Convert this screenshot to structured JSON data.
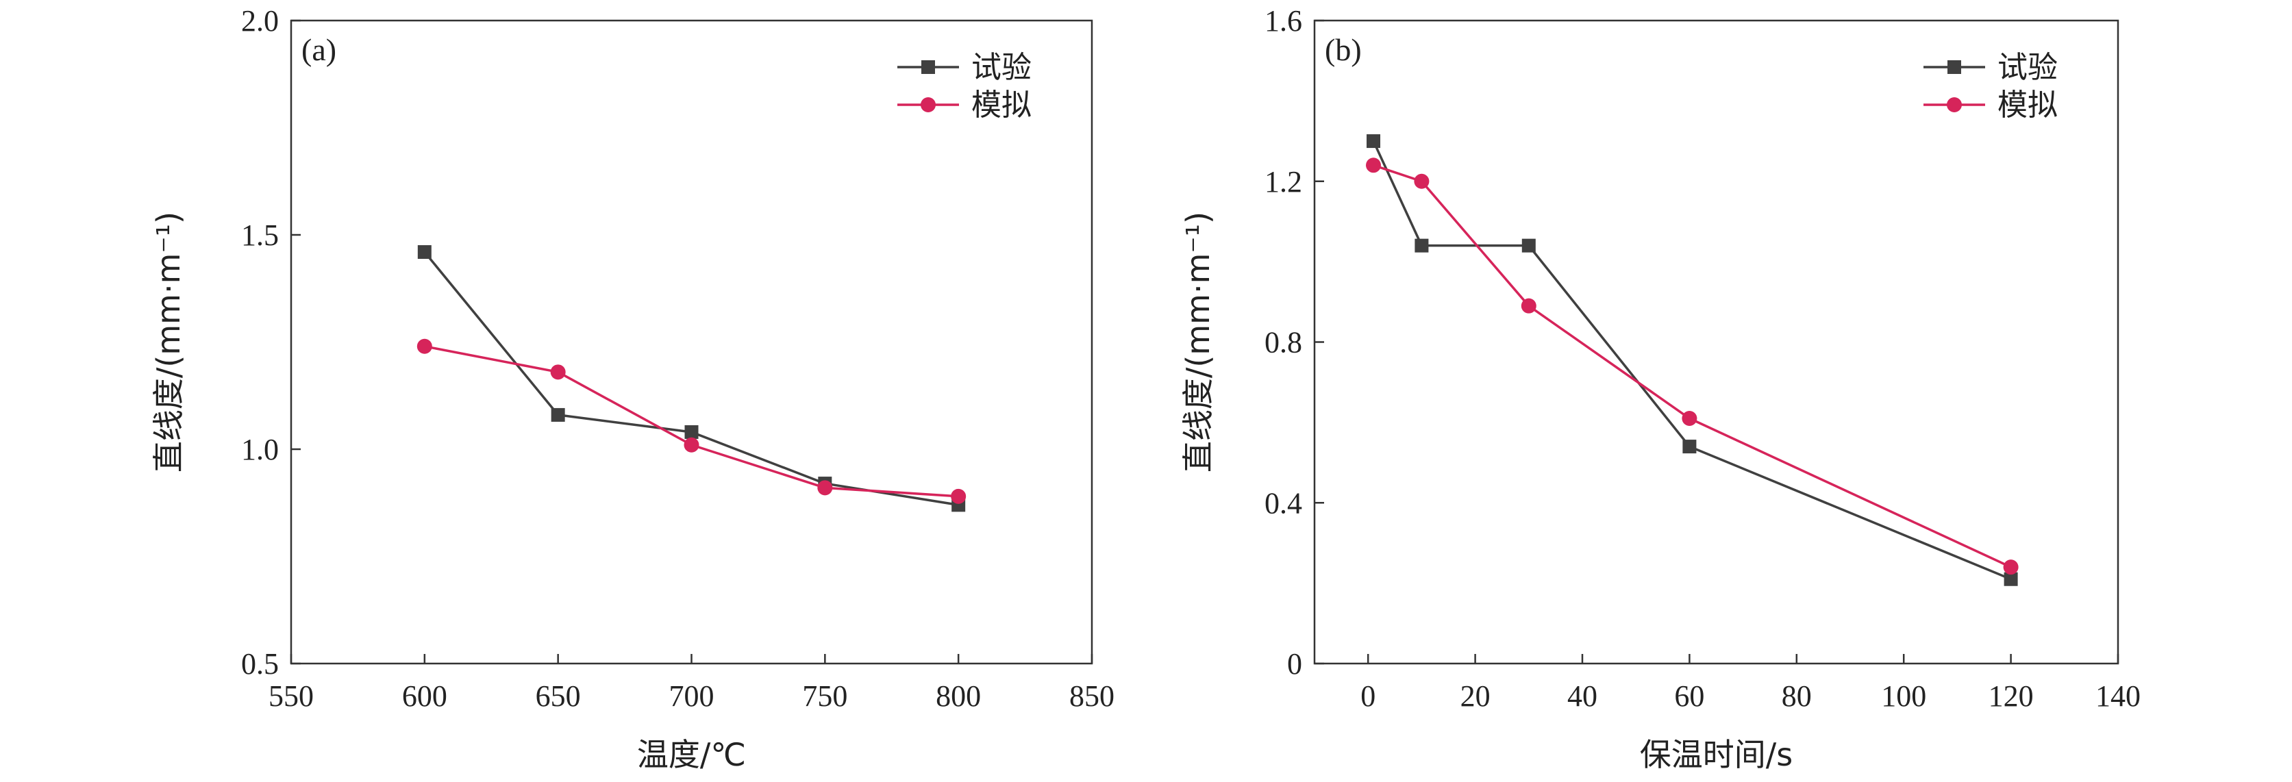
{
  "chart_data": [
    {
      "type": "line",
      "panel_tag": "(a)",
      "xlabel": "温度/℃",
      "ylabel": "直线度/(mm·m⁻¹)",
      "xlim": [
        550,
        850
      ],
      "ylim": [
        0.5,
        2.0
      ],
      "xticks": [
        550,
        600,
        650,
        700,
        750,
        800,
        850
      ],
      "yticks": [
        0.5,
        1.0,
        1.5,
        2.0
      ],
      "xtick_labels": [
        "550",
        "600",
        "650",
        "700",
        "750",
        "800",
        "850"
      ],
      "ytick_labels": [
        "0.5",
        "1.0",
        "1.5",
        "2.0"
      ],
      "legend_position": "top-right",
      "grid": false,
      "series": [
        {
          "name": "试验",
          "marker": "square",
          "color": "#404040",
          "x": [
            600,
            650,
            700,
            750,
            800
          ],
          "y": [
            1.46,
            1.08,
            1.04,
            0.92,
            0.87
          ]
        },
        {
          "name": "模拟",
          "marker": "circle",
          "color": "#d6245a",
          "x": [
            600,
            650,
            700,
            750,
            800
          ],
          "y": [
            1.24,
            1.18,
            1.01,
            0.91,
            0.89
          ]
        }
      ]
    },
    {
      "type": "line",
      "panel_tag": "(b)",
      "xlabel": "保温时间/s",
      "ylabel": "直线度/(mm·m⁻¹)",
      "xlim": [
        -10,
        140
      ],
      "ylim": [
        0,
        1.6
      ],
      "xticks": [
        0,
        20,
        40,
        60,
        80,
        100,
        120,
        140
      ],
      "yticks": [
        0,
        0.4,
        0.8,
        1.2,
        1.6
      ],
      "xtick_labels": [
        "0",
        "20",
        "40",
        "60",
        "80",
        "100",
        "120",
        "140"
      ],
      "ytick_labels": [
        "0",
        "0.4",
        "0.8",
        "1.2",
        "1.6"
      ],
      "legend_position": "top-right",
      "grid": false,
      "series": [
        {
          "name": "试验",
          "marker": "square",
          "color": "#404040",
          "x": [
            1,
            10,
            30,
            60,
            120
          ],
          "y": [
            1.3,
            1.04,
            1.04,
            0.54,
            0.21
          ]
        },
        {
          "name": "模拟",
          "marker": "circle",
          "color": "#d6245a",
          "x": [
            1,
            10,
            30,
            60,
            120
          ],
          "y": [
            1.24,
            1.2,
            0.89,
            0.61,
            0.24
          ]
        }
      ]
    }
  ]
}
